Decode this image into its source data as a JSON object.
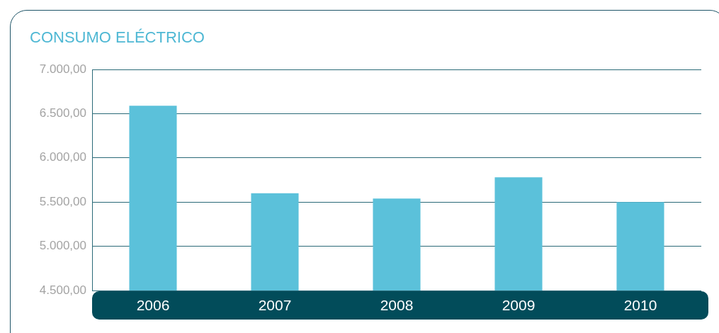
{
  "chart_data": {
    "type": "bar",
    "title": "CONSUMO ELÉCTRICO",
    "categories": [
      "2006",
      "2007",
      "2008",
      "2009",
      "2010"
    ],
    "values": [
      6590,
      5600,
      5540,
      5780,
      5500
    ],
    "color": "#5bc1da",
    "ylim": [
      4500,
      7000
    ],
    "yticks": [
      {
        "value": 4500,
        "label": "4.500,00"
      },
      {
        "value": 5000,
        "label": "5.000,00"
      },
      {
        "value": 5500,
        "label": "5.500,00"
      },
      {
        "value": 6000,
        "label": "6.000,00"
      },
      {
        "value": 6500,
        "label": "6.500,00"
      },
      {
        "value": 7000,
        "label": "7.000,00"
      }
    ],
    "grid": "y",
    "legend": false
  }
}
